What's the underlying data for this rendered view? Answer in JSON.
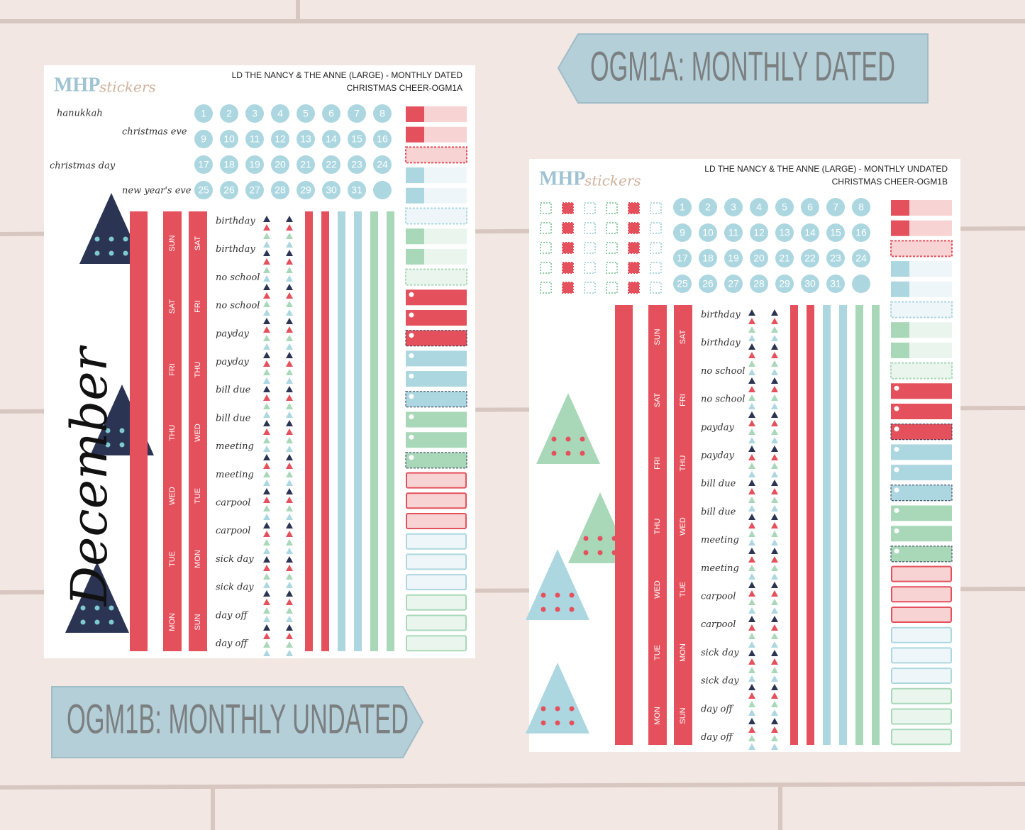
{
  "banners": [
    "OGM1A: MONTHLY DATED",
    "OGM1B: MONTHLY UNDATED"
  ],
  "sheets": [
    {
      "brand": "MHP",
      "brand_script": "stickers",
      "title_line1": "LD THE NANCY & THE ANNE (LARGE) - MONTHLY DATED",
      "title_line2": "CHRISTMAS CHEER-OGM1A",
      "holidays": [
        "hanukkah",
        "christmas eve",
        "christmas day",
        "new year's eve"
      ],
      "dates": [
        1,
        2,
        3,
        4,
        5,
        6,
        7,
        8,
        9,
        10,
        11,
        12,
        13,
        14,
        15,
        16,
        17,
        18,
        19,
        20,
        21,
        22,
        23,
        24,
        25,
        26,
        27,
        28,
        29,
        30,
        31
      ],
      "weekday_columns": [
        [
          "SUN",
          "SAT",
          "FRI",
          "THU",
          "WED",
          "TUE",
          "MON"
        ],
        [
          "SAT",
          "FRI",
          "THU",
          "WED",
          "TUE",
          "MON",
          "SUN"
        ]
      ],
      "labels": [
        "birthday",
        "birthday",
        "no school",
        "no school",
        "payday",
        "payday",
        "bill due",
        "bill due",
        "meeting",
        "meeting",
        "carpool",
        "carpool",
        "sick day",
        "sick day",
        "day off",
        "day off"
      ],
      "month": "December"
    },
    {
      "brand": "MHP",
      "brand_script": "stickers",
      "title_line1": "LD THE NANCY & THE ANNE (LARGE) - MONTHLY UNDATED",
      "title_line2": "CHRISTMAS CHEER-OGM1B",
      "dates": [
        1,
        2,
        3,
        4,
        5,
        6,
        7,
        8,
        9,
        10,
        11,
        12,
        13,
        14,
        15,
        16,
        17,
        18,
        19,
        20,
        21,
        22,
        23,
        24,
        25,
        26,
        27,
        28,
        29,
        30,
        31
      ],
      "weekday_columns": [
        [
          "SUN",
          "SAT",
          "FRI",
          "THU",
          "WED",
          "TUE",
          "MON"
        ],
        [
          "SAT",
          "FRI",
          "THU",
          "WED",
          "TUE",
          "MON",
          "SUN"
        ]
      ],
      "labels": [
        "birthday",
        "birthday",
        "no school",
        "no school",
        "payday",
        "payday",
        "bill due",
        "bill due",
        "meeting",
        "meeting",
        "carpool",
        "carpool",
        "sick day",
        "sick day",
        "day off",
        "day off"
      ]
    }
  ]
}
